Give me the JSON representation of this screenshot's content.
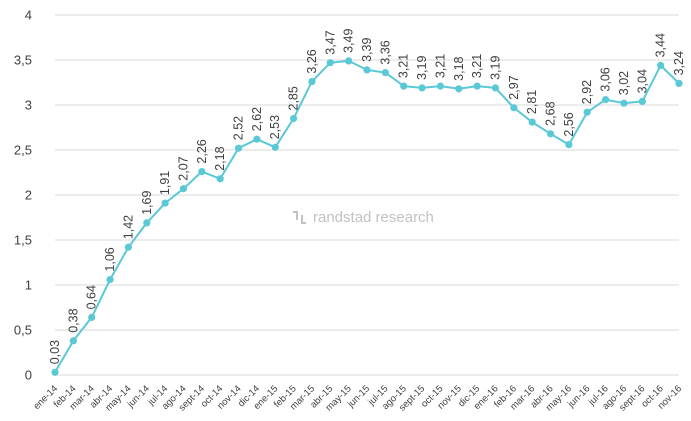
{
  "chart_data": {
    "type": "line",
    "title": "",
    "xlabel": "",
    "ylabel": "",
    "ylim": [
      0,
      4
    ],
    "yticks": [
      "0",
      "0,5",
      "1",
      "1,5",
      "2",
      "2,5",
      "3",
      "3,5",
      "4"
    ],
    "grid": true,
    "legend": "none",
    "line_color": "#5bc8d6",
    "watermark": "randstad research",
    "categories": [
      "ene-14",
      "feb-14",
      "mar-14",
      "abr-14",
      "may-14",
      "jun-14",
      "jul-14",
      "ago-14",
      "sept-14",
      "oct-14",
      "nov-14",
      "dic-14",
      "ene-15",
      "feb-15",
      "mar-15",
      "abr-15",
      "may-15",
      "jun-15",
      "jul-15",
      "ago-15",
      "sept-15",
      "oct-15",
      "nov-15",
      "dic-15",
      "ene-16",
      "feb-16",
      "mar-16",
      "abr-16",
      "may-16",
      "jun-16",
      "jul-16",
      "ago-16",
      "sept-16",
      "oct-16",
      "nov-16"
    ],
    "values": [
      0.03,
      0.38,
      0.64,
      1.06,
      1.42,
      1.69,
      1.91,
      2.07,
      2.26,
      2.18,
      2.52,
      2.62,
      2.53,
      2.85,
      3.26,
      3.47,
      3.49,
      3.39,
      3.36,
      3.21,
      3.19,
      3.21,
      3.18,
      3.21,
      3.19,
      2.97,
      2.81,
      2.68,
      2.56,
      2.92,
      3.06,
      3.02,
      3.04,
      3.44,
      3.24
    ],
    "data_labels": [
      "0,03",
      "0,38",
      "0,64",
      "1,06",
      "1,42",
      "1,69",
      "1,91",
      "2,07",
      "2,26",
      "2,18",
      "2,52",
      "2,62",
      "2,53",
      "2,85",
      "3,26",
      "3,47",
      "3,49",
      "3,39",
      "3,36",
      "3,21",
      "3,19",
      "3,21",
      "3,18",
      "3,21",
      "3,19",
      "2,97",
      "2,81",
      "2,68",
      "2,56",
      "2,92",
      "3,06",
      "3,02",
      "3,04",
      "3,44",
      "3,24"
    ]
  }
}
